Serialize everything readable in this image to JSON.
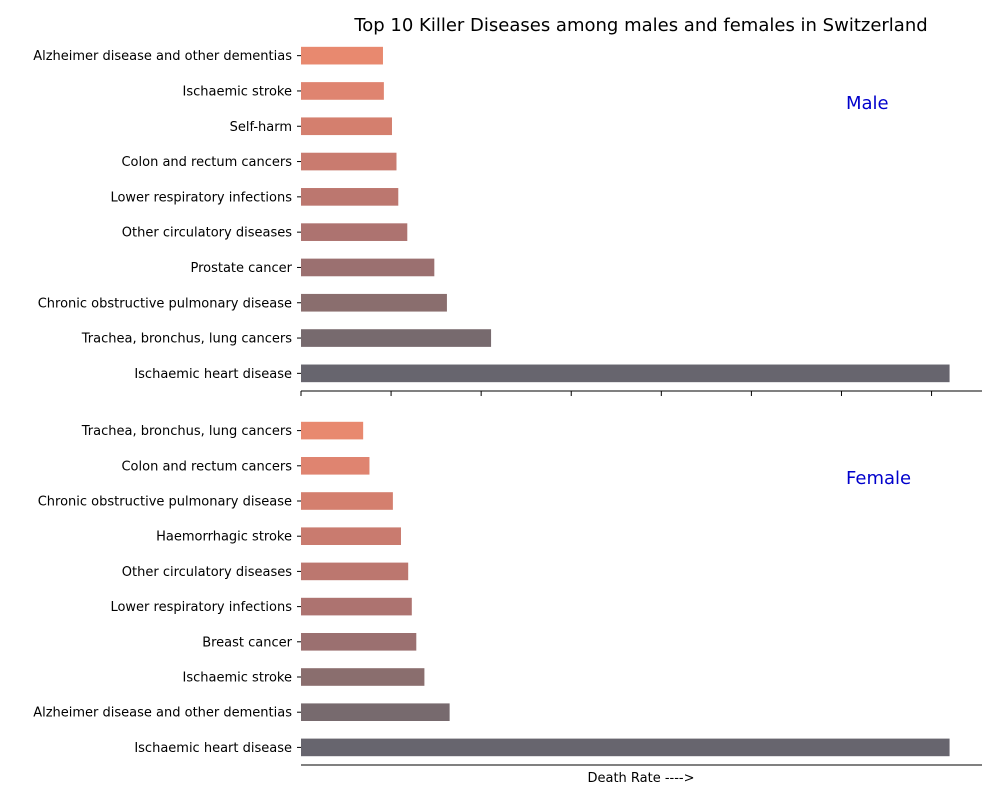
{
  "title": "Top 10 Killer Diseases among males and females in Switzerland",
  "xlabel": "Death Rate ---->",
  "colors": [
    "#e8896f",
    "#df8470",
    "#d47f6e",
    "#c97b6f",
    "#bc776f",
    "#ad7370",
    "#9b7070",
    "#8a6e6e",
    "#776a6e",
    "#67656e"
  ],
  "label_color": "#0000cc",
  "chart_data": [
    {
      "type": "bar",
      "orientation": "horizontal",
      "panel_label": "Male",
      "categories": [
        "Alzheimer disease and other dementias",
        "Ischaemic stroke",
        "Self-harm",
        "Colon and rectum cancers",
        "Lower respiratory infections",
        "Other circulatory diseases",
        "Prostate cancer",
        "Chronic obstructive pulmonary disease",
        "Trachea, bronchus, lung cancers",
        "Ischaemic heart disease"
      ],
      "values": [
        9.1,
        9.2,
        10.1,
        10.6,
        10.8,
        11.8,
        14.8,
        16.2,
        21.1,
        72.0
      ],
      "xlim": [
        0,
        75.6
      ]
    },
    {
      "type": "bar",
      "orientation": "horizontal",
      "panel_label": "Female",
      "categories": [
        "Trachea, bronchus, lung cancers",
        "Colon and rectum cancers",
        "Chronic obstructive pulmonary disease",
        "Haemorrhagic stroke",
        "Other circulatory diseases",
        "Lower respiratory infections",
        "Breast cancer",
        "Ischaemic stroke",
        "Alzheimer disease and other dementias",
        "Ischaemic heart disease"
      ],
      "values": [
        6.9,
        7.6,
        10.2,
        11.1,
        11.9,
        12.3,
        12.8,
        13.7,
        16.5,
        72.0
      ],
      "xlim": [
        0,
        75.6
      ]
    }
  ]
}
